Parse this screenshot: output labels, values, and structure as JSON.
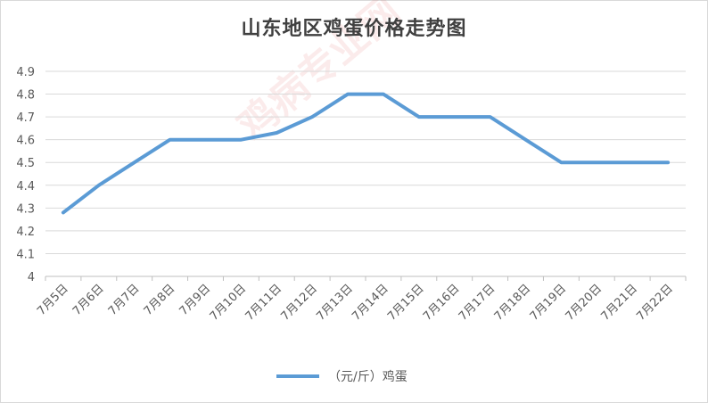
{
  "chart_data": {
    "type": "line",
    "title": "山东地区鸡蛋价格走势图",
    "categories": [
      "7月5日",
      "7月6日",
      "7月7日",
      "7月8日",
      "7月9日",
      "7月10日",
      "7月11日",
      "7月12日",
      "7月13日",
      "7月14日",
      "7月15日",
      "7月16日",
      "7月17日",
      "7月18日",
      "7月19日",
      "7月20日",
      "7月21日",
      "7月22日"
    ],
    "series": [
      {
        "name": "（元/斤）鸡蛋",
        "color": "#5b9bd5",
        "values": [
          4.28,
          4.4,
          4.5,
          4.6,
          4.6,
          4.6,
          4.63,
          4.7,
          4.8,
          4.8,
          4.7,
          4.7,
          4.7,
          4.6,
          4.5,
          4.5,
          4.5,
          4.5
        ]
      }
    ],
    "ylim": [
      4.0,
      4.9
    ],
    "yticks": [
      "4",
      "4.1",
      "4.2",
      "4.3",
      "4.4",
      "4.5",
      "4.6",
      "4.7",
      "4.8",
      "4.9"
    ],
    "grid": true,
    "legend_position": "bottom",
    "xlabel": "",
    "ylabel": ""
  },
  "watermark": "鸡病专业网"
}
